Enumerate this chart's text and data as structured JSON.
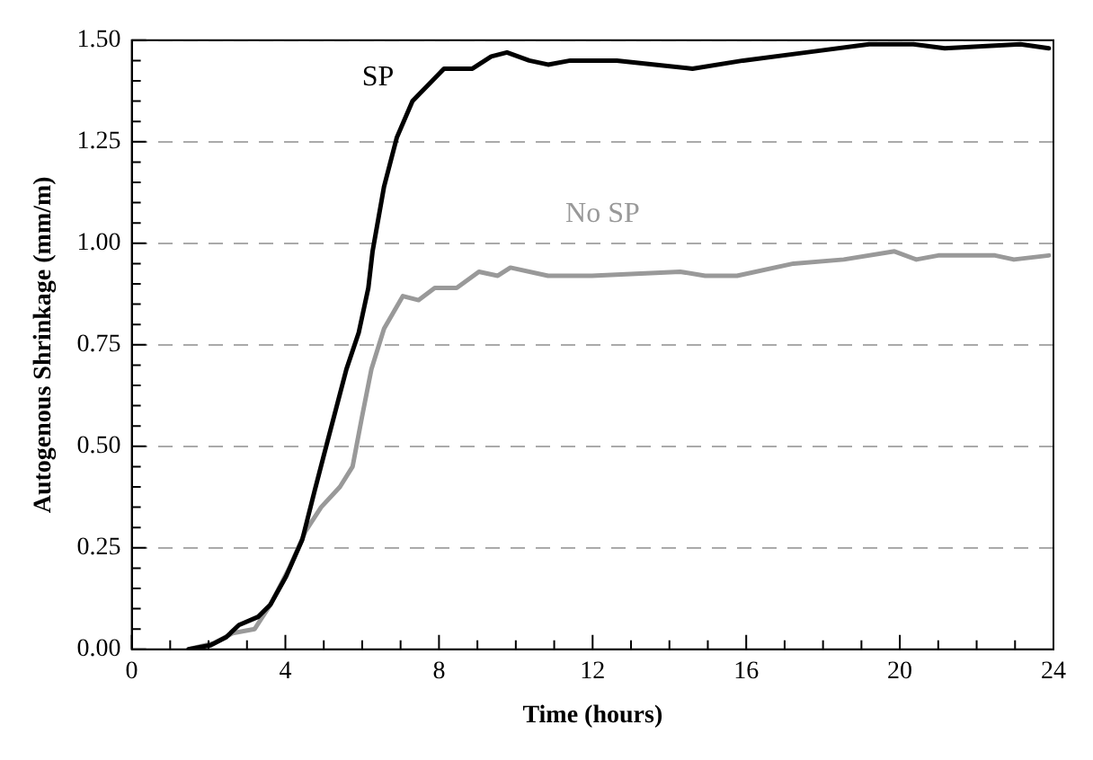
{
  "chart_data": {
    "type": "line",
    "xlabel": "Time (hours)",
    "ylabel": "Autogenous Shrinkage (mm/m)",
    "xlim": [
      0,
      24
    ],
    "xticks": [
      0,
      4,
      8,
      12,
      16,
      20,
      24
    ],
    "ylim": [
      0,
      1.5
    ],
    "yticks": [
      {
        "value": 0,
        "label": "0.00"
      },
      {
        "value": 0.25,
        "label": "0.25"
      },
      {
        "value": 0.5,
        "label": "0.50"
      },
      {
        "value": 0.75,
        "label": "0.75"
      },
      {
        "value": 1,
        "label": "1.00"
      },
      {
        "value": 1.25,
        "label": "1.25"
      },
      {
        "value": 1.5,
        "label": "1.50"
      }
    ],
    "grid": "y",
    "legend": false,
    "marker": "none",
    "line_style": "solid",
    "series": [
      {
        "name": "SP",
        "color": "#000000",
        "x": [
          1.48,
          2.05,
          2.46,
          2.79,
          3.29,
          3.61,
          4.02,
          4.44,
          4.76,
          5.09,
          5.34,
          5.59,
          5.91,
          6.16,
          6.27,
          6.57,
          6.9,
          7.31,
          7.72,
          8.13,
          8.87,
          9.36,
          9.77,
          10.35,
          10.84,
          11.42,
          12.63,
          13.62,
          14.6,
          15.92,
          17.56,
          19.2,
          20.35,
          21.17,
          23.14,
          23.88
        ],
        "values": [
          0,
          0.01,
          0.03,
          0.06,
          0.08,
          0.11,
          0.18,
          0.27,
          0.39,
          0.51,
          0.6,
          0.69,
          0.78,
          0.89,
          0.98,
          1.14,
          1.26,
          1.35,
          1.39,
          1.43,
          1.43,
          1.46,
          1.47,
          1.45,
          1.44,
          1.45,
          1.45,
          1.44,
          1.43,
          1.45,
          1.47,
          1.49,
          1.49,
          1.48,
          1.49,
          1.48
        ]
      },
      {
        "name": "No SP",
        "color": "#999999",
        "x": [
          1.48,
          2.14,
          2.63,
          3.2,
          3.61,
          4.1,
          4.52,
          4.93,
          5.42,
          5.75,
          5.99,
          6.24,
          6.57,
          7.06,
          7.47,
          7.89,
          8.46,
          9.04,
          9.53,
          9.86,
          10.84,
          11.5,
          11.98,
          14.28,
          14.93,
          15.76,
          17.23,
          18.54,
          19.86,
          20.43,
          21,
          22.48,
          22.97,
          23.88
        ],
        "values": [
          0,
          0.015,
          0.04,
          0.05,
          0.11,
          0.2,
          0.29,
          0.35,
          0.4,
          0.45,
          0.57,
          0.69,
          0.79,
          0.87,
          0.86,
          0.89,
          0.89,
          0.93,
          0.92,
          0.94,
          0.92,
          0.92,
          0.92,
          0.93,
          0.92,
          0.92,
          0.95,
          0.96,
          0.98,
          0.96,
          0.97,
          0.97,
          0.96,
          0.97
        ]
      }
    ]
  }
}
